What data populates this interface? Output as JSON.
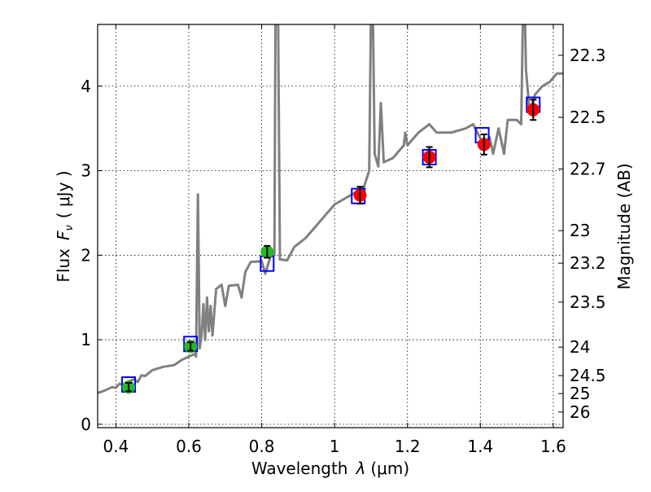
{
  "chart_data": {
    "type": "scatter",
    "title": "",
    "xlabel": "Wavelength  λ (μm)",
    "ylabel": "Flux  F_ν  ( μJy )",
    "ylabel_parts": {
      "flux": "Flux",
      "symbol": "F",
      "sub": "ν",
      "unit": "( μJy )"
    },
    "xlabel_parts": {
      "text": "Wavelength",
      "symbol": "λ",
      "unit": "(μm)"
    },
    "y2label": "Magnitude (AB)",
    "xlim": [
      0.35,
      1.627
    ],
    "ylim": [
      -0.04,
      4.73
    ],
    "xticks": [
      0.4,
      0.6,
      0.8,
      1.0,
      1.2,
      1.4,
      1.6
    ],
    "xtick_labels": [
      "0.4",
      "0.6",
      "0.8",
      "1",
      "1.2",
      "1.4",
      "1.6"
    ],
    "yticks": [
      0,
      1,
      2,
      3,
      4
    ],
    "ytick_labels": [
      "0",
      "1",
      "2",
      "3",
      "4"
    ],
    "y2ticks": [
      22.3,
      22.5,
      22.7,
      23,
      23.2,
      23.5,
      24,
      24.5,
      25,
      26
    ],
    "y2tick_labels": [
      "22.3",
      "22.5",
      "22.7",
      "23",
      "23.2",
      "23.5",
      "24",
      "24.5",
      "25",
      "26"
    ],
    "grid": true,
    "colors": {
      "spectrum": "#808080",
      "model": "#0000ff",
      "optical": "#22bb22",
      "nir": "#ff0000",
      "error": "#000000"
    },
    "series": [
      {
        "name": "spectrum",
        "type": "line",
        "points": [
          [
            0.35,
            0.37
          ],
          [
            0.37,
            0.4
          ],
          [
            0.39,
            0.44
          ],
          [
            0.4,
            0.43
          ],
          [
            0.41,
            0.48
          ],
          [
            0.42,
            0.46
          ],
          [
            0.43,
            0.5
          ],
          [
            0.45,
            0.53
          ],
          [
            0.46,
            0.5
          ],
          [
            0.47,
            0.58
          ],
          [
            0.48,
            0.57
          ],
          [
            0.5,
            0.64
          ],
          [
            0.53,
            0.68
          ],
          [
            0.56,
            0.7
          ],
          [
            0.58,
            0.76
          ],
          [
            0.6,
            0.8
          ],
          [
            0.615,
            0.83
          ],
          [
            0.62,
            0.8
          ],
          [
            0.625,
            2.72
          ],
          [
            0.63,
            0.9
          ],
          [
            0.635,
            1.05
          ],
          [
            0.64,
            1.42
          ],
          [
            0.645,
            1.0
          ],
          [
            0.65,
            1.5
          ],
          [
            0.655,
            1.1
          ],
          [
            0.66,
            1.4
          ],
          [
            0.665,
            1.05
          ],
          [
            0.675,
            1.6
          ],
          [
            0.69,
            1.65
          ],
          [
            0.7,
            1.4
          ],
          [
            0.71,
            1.64
          ],
          [
            0.735,
            1.65
          ],
          [
            0.745,
            1.5
          ],
          [
            0.755,
            1.8
          ],
          [
            0.77,
            1.92
          ],
          [
            0.8,
            1.93
          ],
          [
            0.81,
            1.78
          ],
          [
            0.825,
            2.0
          ],
          [
            0.835,
            2.0
          ],
          [
            0.838,
            4.9
          ],
          [
            0.845,
            4.9
          ],
          [
            0.85,
            1.95
          ],
          [
            0.87,
            1.94
          ],
          [
            0.89,
            2.1
          ],
          [
            0.92,
            2.2
          ],
          [
            0.95,
            2.35
          ],
          [
            0.98,
            2.5
          ],
          [
            1.0,
            2.6
          ],
          [
            1.04,
            2.7
          ],
          [
            1.08,
            2.8
          ],
          [
            1.095,
            3.0
          ],
          [
            1.1,
            4.9
          ],
          [
            1.105,
            4.9
          ],
          [
            1.11,
            3.2
          ],
          [
            1.12,
            3.05
          ],
          [
            1.127,
            3.8
          ],
          [
            1.135,
            3.1
          ],
          [
            1.16,
            3.15
          ],
          [
            1.19,
            3.3
          ],
          [
            1.194,
            3.45
          ],
          [
            1.2,
            3.3
          ],
          [
            1.23,
            3.45
          ],
          [
            1.26,
            3.55
          ],
          [
            1.28,
            3.45
          ],
          [
            1.32,
            3.45
          ],
          [
            1.36,
            3.5
          ],
          [
            1.38,
            3.55
          ],
          [
            1.41,
            3.3
          ],
          [
            1.425,
            3.4
          ],
          [
            1.435,
            3.2
          ],
          [
            1.45,
            3.5
          ],
          [
            1.465,
            3.2
          ],
          [
            1.475,
            3.6
          ],
          [
            1.5,
            3.6
          ],
          [
            1.512,
            3.55
          ],
          [
            1.517,
            4.9
          ],
          [
            1.522,
            4.9
          ],
          [
            1.525,
            4.2
          ],
          [
            1.535,
            3.7
          ],
          [
            1.55,
            3.9
          ],
          [
            1.57,
            4.0
          ],
          [
            1.59,
            4.05
          ],
          [
            1.61,
            4.15
          ],
          [
            1.627,
            4.15
          ]
        ]
      },
      {
        "name": "model",
        "type": "scatter",
        "marker": "square",
        "x": [
          0.435,
          0.605,
          0.815,
          1.065,
          1.26,
          1.405,
          1.545
        ],
        "y": [
          0.47,
          0.95,
          1.9,
          2.7,
          3.16,
          3.42,
          3.78
        ]
      },
      {
        "name": "optical",
        "type": "scatter",
        "marker": "circle",
        "x": [
          0.435,
          0.605,
          0.815
        ],
        "y": [
          0.44,
          0.92,
          2.04
        ],
        "yerr": [
          0.05,
          0.05,
          0.07
        ]
      },
      {
        "name": "nir",
        "type": "scatter",
        "marker": "circle",
        "x": [
          1.07,
          1.26,
          1.41,
          1.545
        ],
        "y": [
          2.71,
          3.16,
          3.31,
          3.72
        ],
        "yerr": [
          0.1,
          0.12,
          0.12,
          0.12
        ]
      }
    ]
  }
}
